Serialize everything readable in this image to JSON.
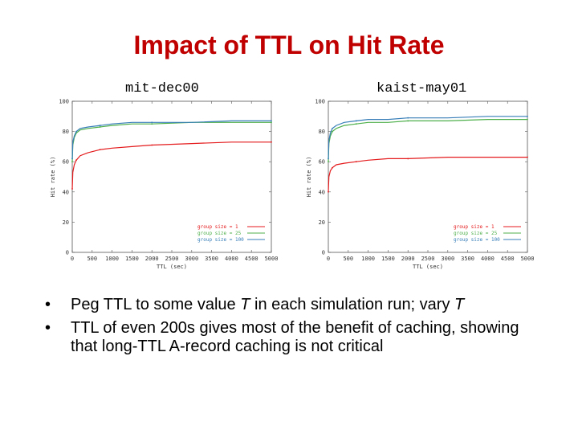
{
  "title": "Impact of TTL on Hit Rate",
  "charts_captions": [
    "mit-dec00",
    "kaist-may01"
  ],
  "chart_data": [
    {
      "type": "line",
      "title": "mit-dec00",
      "xlabel": "TTL (sec)",
      "ylabel": "Hit rate (%)",
      "xlim": [
        0,
        5000
      ],
      "ylim": [
        0,
        100
      ],
      "xticks": [
        "0",
        "500",
        "1000",
        "1500",
        "2000",
        "2500",
        "3000",
        "3500",
        "4000",
        "4500",
        "5000"
      ],
      "yticks": [
        "0",
        "20",
        "40",
        "60",
        "80",
        "100"
      ],
      "legend_position": "bottom-right",
      "series": [
        {
          "name": "group size = 1",
          "color": "#e41a1c",
          "x": [
            0,
            15,
            50,
            100,
            200,
            400,
            700,
            1000,
            1500,
            2000,
            3000,
            4000,
            5000
          ],
          "values": [
            42,
            53,
            58,
            61,
            64,
            66,
            68,
            69,
            70,
            71,
            72,
            73,
            73
          ]
        },
        {
          "name": "group size = 25",
          "color": "#4daf4a",
          "x": [
            0,
            15,
            50,
            100,
            200,
            400,
            700,
            1000,
            1500,
            2000,
            3000,
            4000,
            5000
          ],
          "values": [
            60,
            71,
            76,
            79,
            81,
            82,
            83,
            84,
            85,
            85,
            86,
            86,
            86
          ]
        },
        {
          "name": "group size = 100",
          "color": "#377eb8",
          "x": [
            0,
            15,
            50,
            100,
            200,
            400,
            700,
            1000,
            1500,
            2000,
            3000,
            4000,
            5000
          ],
          "values": [
            62,
            73,
            77,
            80,
            82,
            83,
            84,
            85,
            86,
            86,
            86,
            87,
            87
          ]
        }
      ]
    },
    {
      "type": "line",
      "title": "kaist-may01",
      "xlabel": "TTL (sec)",
      "ylabel": "Hit rate (%)",
      "xlim": [
        0,
        5000
      ],
      "ylim": [
        0,
        100
      ],
      "xticks": [
        "0",
        "500",
        "1000",
        "1500",
        "2000",
        "2500",
        "3000",
        "3500",
        "4000",
        "4500",
        "5000"
      ],
      "yticks": [
        "0",
        "20",
        "40",
        "60",
        "80",
        "100"
      ],
      "legend_position": "bottom-right",
      "series": [
        {
          "name": "group size = 1",
          "color": "#e41a1c",
          "x": [
            0,
            15,
            50,
            100,
            200,
            400,
            700,
            1000,
            1500,
            2000,
            3000,
            4000,
            5000
          ],
          "values": [
            40,
            50,
            54,
            56,
            58,
            59,
            60,
            61,
            62,
            62,
            63,
            63,
            63
          ]
        },
        {
          "name": "group size = 25",
          "color": "#4daf4a",
          "x": [
            0,
            15,
            50,
            100,
            200,
            400,
            700,
            1000,
            1500,
            2000,
            3000,
            4000,
            5000
          ],
          "values": [
            60,
            72,
            77,
            80,
            82,
            84,
            85,
            86,
            86,
            87,
            87,
            88,
            88
          ]
        },
        {
          "name": "group size = 100",
          "color": "#377eb8",
          "x": [
            0,
            15,
            50,
            100,
            200,
            400,
            700,
            1000,
            1500,
            2000,
            3000,
            4000,
            5000
          ],
          "values": [
            62,
            74,
            79,
            82,
            84,
            86,
            87,
            88,
            88,
            89,
            89,
            90,
            90
          ]
        }
      ]
    }
  ],
  "bullets": [
    {
      "parts": [
        {
          "text": "Peg TTL to some value ",
          "italic": false
        },
        {
          "text": "T",
          "italic": true
        },
        {
          "text": " in each simulation run; vary ",
          "italic": false
        },
        {
          "text": "T",
          "italic": true
        }
      ]
    },
    {
      "parts": [
        {
          "text": "TTL of even 200s gives most of the benefit of caching, showing that long-TTL A-record caching is not critical",
          "italic": false
        }
      ]
    }
  ],
  "bullet_marker": "•"
}
